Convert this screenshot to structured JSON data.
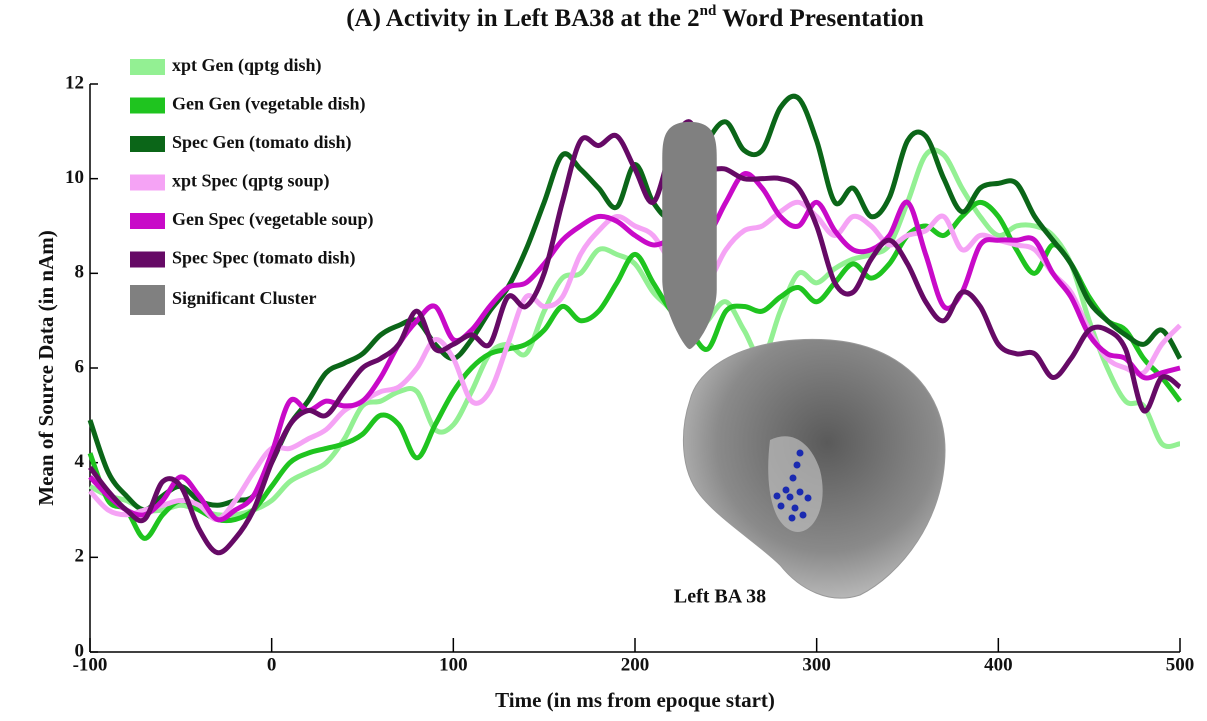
{
  "chart_data": {
    "type": "line",
    "title_parts": [
      "(A) Activity in Left BA38 at the 2",
      "nd",
      " Word Presentation"
    ],
    "xlabel": "Time (in ms from epoque start)",
    "ylabel": "Mean of Source Data (in nAm)",
    "x": [
      -100,
      -90,
      -80,
      -70,
      -60,
      -50,
      -40,
      -30,
      -20,
      -10,
      0,
      10,
      20,
      30,
      40,
      50,
      60,
      70,
      80,
      90,
      100,
      110,
      120,
      130,
      140,
      150,
      160,
      170,
      180,
      190,
      200,
      210,
      220,
      230,
      240,
      250,
      260,
      270,
      280,
      290,
      300,
      310,
      320,
      330,
      340,
      350,
      360,
      370,
      380,
      390,
      400,
      410,
      420,
      430,
      440,
      450,
      460,
      470,
      480,
      490,
      500
    ],
    "xlim": [
      -100,
      500
    ],
    "xticks": [
      -100,
      0,
      100,
      200,
      300,
      400,
      500
    ],
    "ylim": [
      0,
      12
    ],
    "yticks": [
      0,
      2,
      4,
      6,
      8,
      10,
      12
    ],
    "shaded_region": {
      "label": "Significant Cluster",
      "x": [
        215,
        245
      ],
      "y": [
        6.4,
        11.2
      ],
      "color": "#808080"
    },
    "inset_label": "Left BA 38",
    "series": [
      {
        "name": "xpt Gen (qptg dish)",
        "color": "#93f093",
        "values": [
          3.5,
          3.3,
          3.2,
          3.0,
          3.0,
          3.1,
          3.0,
          2.9,
          2.9,
          3.0,
          3.2,
          3.6,
          3.8,
          4.0,
          4.5,
          5.2,
          5.3,
          5.5,
          5.5,
          4.7,
          4.8,
          5.5,
          6.3,
          6.5,
          6.3,
          7.2,
          7.9,
          8.0,
          8.5,
          8.4,
          8.2,
          7.6,
          7.2,
          6.5,
          7.0,
          7.4,
          6.8,
          6.2,
          7.2,
          8.0,
          7.8,
          8.1,
          8.3,
          8.4,
          8.6,
          9.5,
          10.5,
          10.5,
          9.8,
          9.2,
          8.8,
          9.0,
          9.0,
          8.8,
          8.2,
          7.0,
          6.0,
          5.3,
          5.2,
          4.4,
          4.4
        ]
      },
      {
        "name": "Gen Gen (vegetable dish)",
        "color": "#1fc41f",
        "values": [
          4.2,
          3.2,
          3.0,
          2.4,
          2.9,
          3.2,
          3.0,
          2.8,
          2.8,
          3.0,
          3.5,
          4.0,
          4.2,
          4.3,
          4.4,
          4.6,
          5.0,
          4.8,
          4.1,
          4.8,
          5.5,
          6.0,
          6.3,
          6.4,
          6.5,
          6.8,
          7.3,
          7.0,
          7.2,
          7.8,
          8.4,
          7.8,
          7.2,
          6.8,
          6.4,
          7.2,
          7.3,
          7.2,
          7.5,
          7.7,
          7.4,
          7.8,
          8.2,
          7.9,
          8.2,
          8.8,
          9.0,
          8.8,
          9.2,
          9.5,
          9.2,
          8.5,
          8.0,
          8.6,
          8.2,
          7.5,
          7.0,
          6.8,
          6.2,
          5.8,
          5.3
        ]
      },
      {
        "name": "Spec Gen (tomato dish)",
        "color": "#0b6618",
        "values": [
          4.9,
          3.8,
          3.3,
          3.0,
          3.3,
          3.5,
          3.2,
          3.1,
          3.2,
          3.3,
          4.0,
          4.8,
          5.3,
          5.9,
          6.1,
          6.3,
          6.7,
          6.9,
          7.0,
          6.5,
          6.2,
          6.6,
          7.2,
          7.7,
          8.5,
          9.5,
          10.5,
          10.2,
          9.8,
          9.4,
          10.3,
          9.5,
          9.2,
          10.0,
          10.8,
          11.2,
          10.6,
          10.6,
          11.5,
          11.7,
          10.8,
          9.5,
          9.8,
          9.2,
          9.6,
          10.8,
          10.9,
          10.0,
          9.3,
          9.8,
          9.9,
          9.9,
          9.2,
          8.7,
          8.2,
          7.4,
          7.0,
          6.7,
          6.5,
          6.8,
          6.2
        ]
      },
      {
        "name": "xpt Spec (qptg soup)",
        "color": "#f5a3f5",
        "values": [
          3.4,
          3.0,
          2.9,
          3.0,
          3.1,
          3.2,
          3.1,
          2.8,
          3.2,
          3.8,
          4.3,
          4.3,
          4.5,
          4.7,
          5.1,
          5.3,
          5.5,
          5.6,
          6.0,
          6.6,
          6.2,
          5.3,
          5.5,
          6.5,
          7.5,
          7.3,
          7.5,
          8.4,
          8.9,
          9.2,
          9.0,
          8.8,
          8.2,
          7.6,
          7.8,
          8.5,
          8.9,
          9.0,
          9.3,
          9.5,
          9.2,
          8.8,
          9.2,
          9.0,
          8.6,
          8.8,
          8.9,
          9.2,
          8.5,
          8.8,
          8.7,
          8.6,
          8.5,
          8.0,
          7.6,
          6.8,
          6.2,
          6.0,
          5.9,
          6.5,
          6.9
        ]
      },
      {
        "name": "Gen Spec (vegetable soup)",
        "color": "#c80ac8",
        "values": [
          3.7,
          3.3,
          3.0,
          2.9,
          3.2,
          3.7,
          3.3,
          2.8,
          3.0,
          3.3,
          4.2,
          5.3,
          5.1,
          5.3,
          5.2,
          5.3,
          5.8,
          6.5,
          7.0,
          7.3,
          6.6,
          6.8,
          7.3,
          7.7,
          7.8,
          8.2,
          8.7,
          9.0,
          9.2,
          9.1,
          8.8,
          8.6,
          8.7,
          8.7,
          8.8,
          9.5,
          10.1,
          9.8,
          9.2,
          9.0,
          9.5,
          8.9,
          8.5,
          8.5,
          8.8,
          9.5,
          8.4,
          7.3,
          7.6,
          8.6,
          8.7,
          8.7,
          8.7,
          8.0,
          7.5,
          6.7,
          6.3,
          6.2,
          5.8,
          5.9,
          6.0
        ]
      },
      {
        "name": "Spec Spec (tomato dish)",
        "color": "#660a66",
        "values": [
          3.9,
          3.4,
          3.0,
          2.8,
          3.6,
          3.5,
          2.6,
          2.1,
          2.4,
          3.0,
          4.0,
          4.8,
          5.1,
          5.0,
          5.5,
          6.0,
          6.2,
          6.5,
          7.2,
          6.4,
          6.5,
          6.7,
          6.5,
          7.5,
          7.3,
          8.0,
          9.5,
          10.8,
          10.7,
          10.9,
          10.2,
          9.5,
          10.6,
          11.2,
          10.3,
          10.2,
          10.0,
          10.0,
          10.0,
          9.8,
          9.0,
          7.8,
          7.6,
          8.3,
          8.7,
          8.2,
          7.4,
          7.0,
          7.6,
          7.3,
          6.5,
          6.3,
          6.3,
          5.8,
          6.2,
          6.8,
          6.8,
          6.4,
          5.1,
          5.8,
          5.6
        ]
      }
    ]
  }
}
